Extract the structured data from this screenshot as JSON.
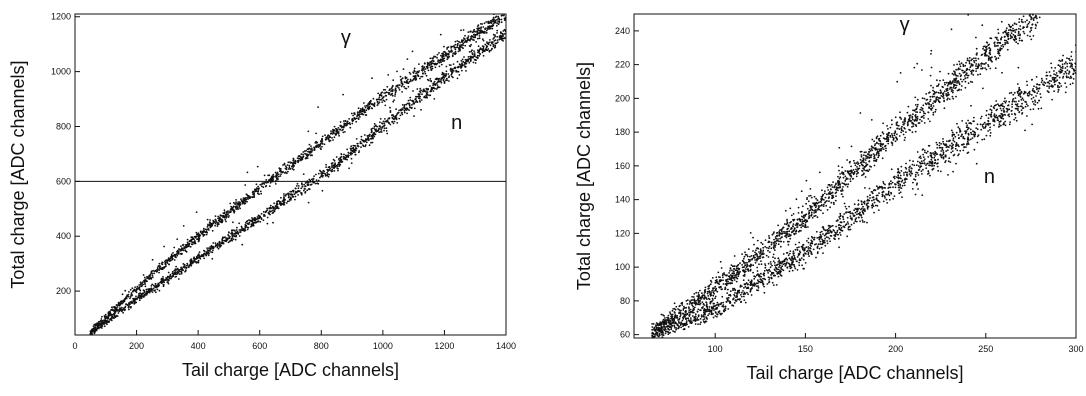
{
  "chart_data": [
    {
      "type": "scatter",
      "title": "",
      "xlabel": "Tail charge [ADC channels]",
      "ylabel": "Total charge [ADC channels]",
      "xlim": [
        0,
        1400
      ],
      "ylim": [
        40,
        1210
      ],
      "xticks": [
        0,
        200,
        400,
        600,
        800,
        1000,
        1200,
        1400
      ],
      "xtick_labels": [
        "0",
        "200",
        "400",
        "600",
        "800",
        "1000",
        "1200",
        "1400"
      ],
      "yticks": [
        200,
        400,
        600,
        800,
        1000,
        1200
      ],
      "ytick_labels": [
        "200",
        "400",
        "600",
        "800",
        "1000",
        "1200"
      ],
      "grid": false,
      "legend": "none",
      "hline": 600,
      "annotations": [
        {
          "text": "γ",
          "x": 880,
          "y": 1100
        },
        {
          "text": "n",
          "x": 1240,
          "y": 790
        }
      ],
      "series": [
        {
          "x": [
            50,
            200,
            400,
            600,
            800,
            1000,
            1200,
            1400
          ],
          "y": [
            50,
            210,
            400,
            575,
            740,
            910,
            1060,
            1210
          ]
        },
        {
          "x": [
            50,
            200,
            400,
            600,
            800,
            1000,
            1200,
            1400
          ],
          "y": [
            45,
            170,
            320,
            470,
            620,
            800,
            980,
            1140
          ]
        }
      ]
    },
    {
      "type": "scatter",
      "title": "",
      "xlabel": "Tail charge [ADC channels]",
      "ylabel": "Total charge [ADC channels]",
      "xlim": [
        55,
        300
      ],
      "ylim": [
        58,
        250
      ],
      "xticks": [
        100,
        150,
        200,
        250,
        300
      ],
      "xtick_labels": [
        "100",
        "150",
        "200",
        "250",
        "300"
      ],
      "yticks": [
        60,
        80,
        100,
        120,
        140,
        160,
        180,
        200,
        220,
        240
      ],
      "ytick_labels": [
        "60",
        "80",
        "100",
        "120",
        "140",
        "160",
        "180",
        "200",
        "220",
        "240"
      ],
      "grid": false,
      "legend": "none",
      "annotations": [
        {
          "text": "γ",
          "x": 205,
          "y": 240
        },
        {
          "text": "n",
          "x": 252,
          "y": 150
        }
      ],
      "series": [
        {
          "x": [
            65,
            100,
            150,
            200,
            250,
            280
          ],
          "y": [
            62,
            87,
            130,
            180,
            225,
            250
          ]
        },
        {
          "x": [
            65,
            100,
            150,
            200,
            250,
            300
          ],
          "y": [
            60,
            75,
            110,
            150,
            185,
            220
          ]
        }
      ]
    }
  ]
}
